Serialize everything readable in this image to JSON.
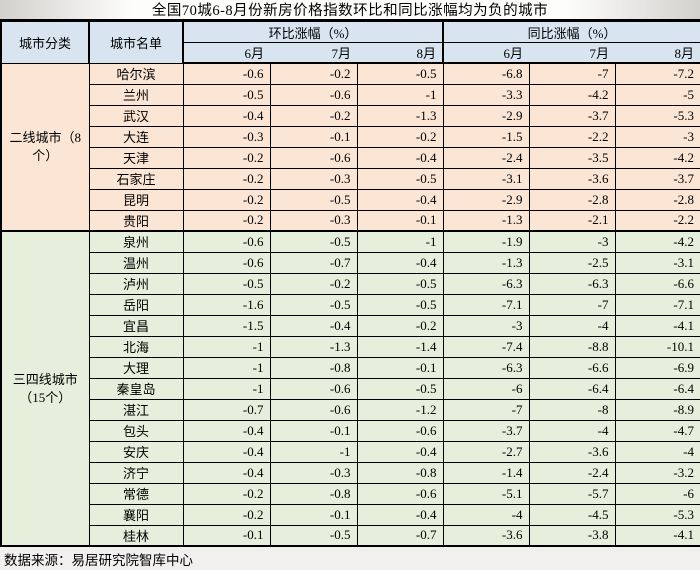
{
  "title": "全国70城6-8月份新房价格指数环比和同比涨幅均为负的城市",
  "colors": {
    "header_bg": "#d9e4f1",
    "tier2_bg": "#fbe5d5",
    "tier34_bg": "#e5efdb",
    "border": "#000000"
  },
  "table": {
    "col_city_class": "城市分类",
    "col_city_list": "城市名单",
    "col_mom": "环比涨幅（%）",
    "col_yoy": "同比涨幅（%）",
    "months": [
      "6月",
      "7月",
      "8月"
    ],
    "groups": [
      {
        "label": "二线城市（8个）",
        "bg": "#fbe5d5",
        "rows": [
          {
            "city": "哈尔滨",
            "mom": [
              "-0.6",
              "-0.2",
              "-0.5"
            ],
            "yoy": [
              "-6.8",
              "-7",
              "-7.2"
            ]
          },
          {
            "city": "兰州",
            "mom": [
              "-0.5",
              "-0.6",
              "-1"
            ],
            "yoy": [
              "-3.3",
              "-4.2",
              "-5"
            ]
          },
          {
            "city": "武汉",
            "mom": [
              "-0.4",
              "-0.2",
              "-1.3"
            ],
            "yoy": [
              "-2.9",
              "-3.7",
              "-5.3"
            ]
          },
          {
            "city": "大连",
            "mom": [
              "-0.3",
              "-0.1",
              "-0.2"
            ],
            "yoy": [
              "-1.5",
              "-2.2",
              "-3"
            ]
          },
          {
            "city": "天津",
            "mom": [
              "-0.2",
              "-0.6",
              "-0.4"
            ],
            "yoy": [
              "-2.4",
              "-3.5",
              "-4.2"
            ]
          },
          {
            "city": "石家庄",
            "mom": [
              "-0.2",
              "-0.3",
              "-0.5"
            ],
            "yoy": [
              "-3.1",
              "-3.6",
              "-3.7"
            ]
          },
          {
            "city": "昆明",
            "mom": [
              "-0.2",
              "-0.5",
              "-0.4"
            ],
            "yoy": [
              "-2.9",
              "-2.8",
              "-2.8"
            ]
          },
          {
            "city": "贵阳",
            "mom": [
              "-0.2",
              "-0.3",
              "-0.1"
            ],
            "yoy": [
              "-1.3",
              "-2.1",
              "-2.2"
            ]
          }
        ]
      },
      {
        "label": "三四线城市（15个）",
        "bg": "#e5efdb",
        "rows": [
          {
            "city": "泉州",
            "mom": [
              "-0.6",
              "-0.5",
              "-1"
            ],
            "yoy": [
              "-1.9",
              "-3",
              "-4.2"
            ]
          },
          {
            "city": "温州",
            "mom": [
              "-0.6",
              "-0.7",
              "-0.4"
            ],
            "yoy": [
              "-1.3",
              "-2.5",
              "-3.1"
            ]
          },
          {
            "city": "泸州",
            "mom": [
              "-0.5",
              "-0.2",
              "-0.5"
            ],
            "yoy": [
              "-6.3",
              "-6.3",
              "-6.6"
            ]
          },
          {
            "city": "岳阳",
            "mom": [
              "-1.6",
              "-0.5",
              "-0.5"
            ],
            "yoy": [
              "-7.1",
              "-7",
              "-7.1"
            ]
          },
          {
            "city": "宜昌",
            "mom": [
              "-1.5",
              "-0.4",
              "-0.2"
            ],
            "yoy": [
              "-3",
              "-4",
              "-4.1"
            ]
          },
          {
            "city": "北海",
            "mom": [
              "-1",
              "-1.3",
              "-1.4"
            ],
            "yoy": [
              "-7.4",
              "-8.8",
              "-10.1"
            ]
          },
          {
            "city": "大理",
            "mom": [
              "-1",
              "-0.8",
              "-0.1"
            ],
            "yoy": [
              "-6.3",
              "-6.6",
              "-6.9"
            ]
          },
          {
            "city": "秦皇岛",
            "mom": [
              "-1",
              "-0.6",
              "-0.5"
            ],
            "yoy": [
              "-6",
              "-6.4",
              "-6.4"
            ]
          },
          {
            "city": "湛江",
            "mom": [
              "-0.7",
              "-0.6",
              "-1.2"
            ],
            "yoy": [
              "-7",
              "-8",
              "-8.9"
            ]
          },
          {
            "city": "包头",
            "mom": [
              "-0.4",
              "-0.1",
              "-0.6"
            ],
            "yoy": [
              "-3.7",
              "-4",
              "-4.7"
            ]
          },
          {
            "city": "安庆",
            "mom": [
              "-0.4",
              "-1",
              "-0.4"
            ],
            "yoy": [
              "-2.7",
              "-3.6",
              "-4"
            ]
          },
          {
            "city": "济宁",
            "mom": [
              "-0.4",
              "-0.3",
              "-0.8"
            ],
            "yoy": [
              "-1.4",
              "-2.4",
              "-3.2"
            ]
          },
          {
            "city": "常德",
            "mom": [
              "-0.2",
              "-0.8",
              "-0.6"
            ],
            "yoy": [
              "-5.1",
              "-5.7",
              "-6"
            ]
          },
          {
            "city": "襄阳",
            "mom": [
              "-0.2",
              "-0.1",
              "-0.4"
            ],
            "yoy": [
              "-4",
              "-4.5",
              "-5.3"
            ]
          },
          {
            "city": "桂林",
            "mom": [
              "-0.1",
              "-0.5",
              "-0.7"
            ],
            "yoy": [
              "-3.6",
              "-3.8",
              "-4.1"
            ]
          }
        ]
      }
    ]
  },
  "footer": {
    "source": "数据来源：易居研究院智库中心"
  }
}
